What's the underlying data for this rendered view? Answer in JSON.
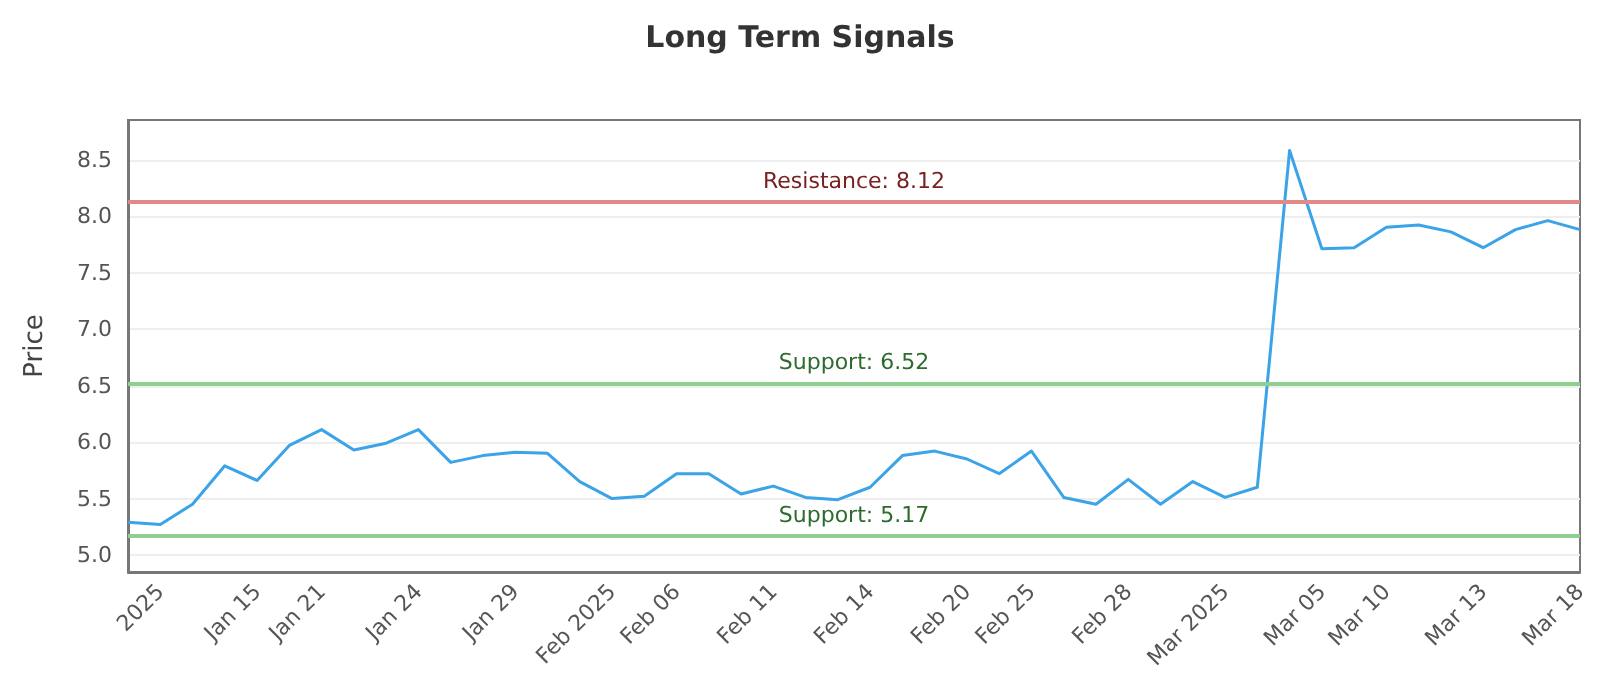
{
  "chart_data": {
    "type": "line",
    "title": "Long Term Signals",
    "ylabel": "Price",
    "categories": [
      null,
      "2025",
      null,
      null,
      "Jan 15",
      null,
      "Jan 21",
      null,
      null,
      "Jan 24",
      null,
      null,
      "Jan 29",
      null,
      null,
      "Feb 2025",
      null,
      "Feb 06",
      null,
      null,
      "Feb 11",
      null,
      null,
      "Feb 14",
      null,
      null,
      "Feb 20",
      null,
      "Feb 25",
      null,
      null,
      "Feb 28",
      null,
      null,
      "Mar 2025",
      null,
      null,
      "Mar 05",
      null,
      "Mar 10",
      null,
      null,
      "Mar 13",
      null,
      null,
      "Mar 18"
    ],
    "series": [
      {
        "color": "#3ba3e8",
        "values": [
          5.29,
          5.27,
          5.45,
          5.79,
          5.66,
          5.97,
          6.11,
          5.93,
          5.99,
          6.11,
          5.82,
          5.88,
          5.91,
          5.9,
          5.65,
          5.5,
          5.52,
          5.72,
          5.72,
          5.54,
          5.61,
          5.51,
          5.49,
          5.6,
          5.88,
          5.92,
          5.85,
          5.72,
          5.92,
          5.51,
          5.45,
          5.67,
          5.45,
          5.65,
          5.51,
          5.6,
          8.58,
          7.71,
          7.72,
          7.9,
          7.92,
          7.86,
          7.72,
          7.88,
          7.96,
          7.88
        ]
      }
    ],
    "ylim": [
      4.85,
      8.85
    ],
    "yticks": [
      {
        "value": 5,
        "label": "5.0"
      },
      5.5,
      {
        "value": 6,
        "label": "6.0"
      },
      6.5,
      {
        "value": 7,
        "label": "7.0"
      },
      7.5,
      {
        "value": 8,
        "label": "8.0"
      },
      8.5
    ],
    "ref_lines": [
      {
        "axis": "y",
        "value": 8.12,
        "label": "Resistance: 8.12",
        "color": "#e08a8a"
      },
      {
        "axis": "y",
        "value": 6.52,
        "label": "Support: 6.52",
        "color": "#8fcf8f"
      },
      {
        "axis": "y",
        "value": 5.17,
        "label": "Support: 5.17",
        "color": "#8fcf8f"
      }
    ],
    "grid": "y",
    "marker": "none",
    "line_style": "solid"
  }
}
